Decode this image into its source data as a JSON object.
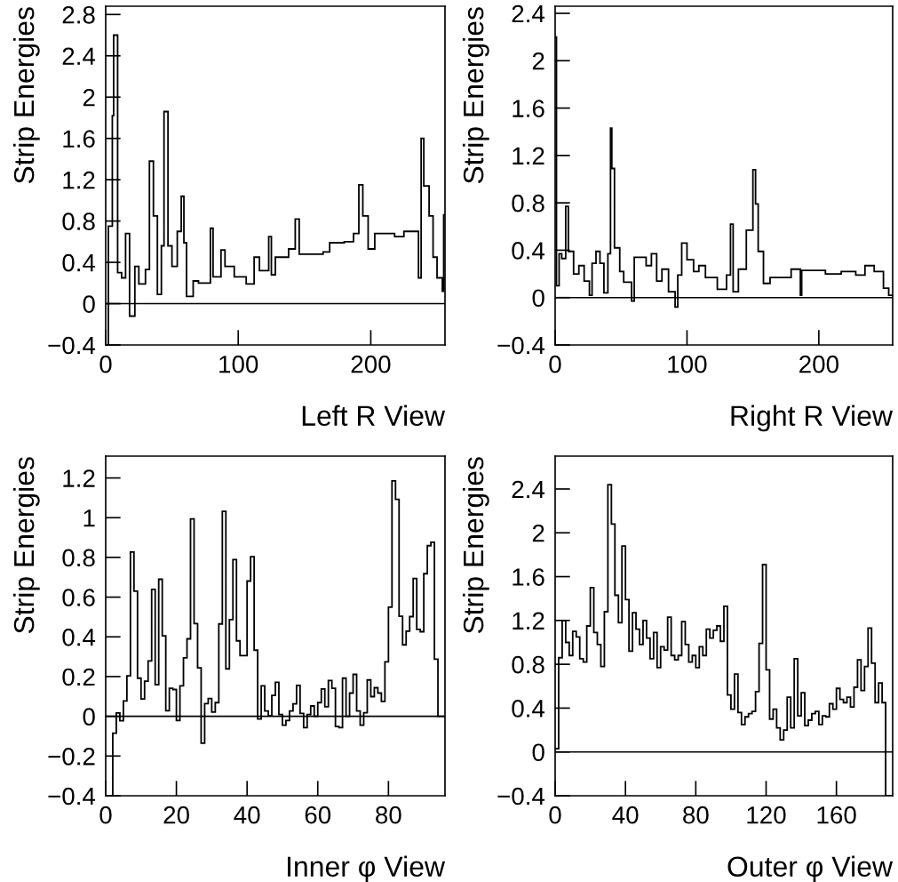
{
  "chart_data": [
    {
      "type": "histogram",
      "xlabel": "Left R View",
      "ylabel": "Strip Energies",
      "color": "#000000",
      "bins": [
        0,
        2,
        5,
        6,
        9,
        12,
        15,
        18,
        22,
        25,
        30,
        33,
        36,
        39,
        42,
        44,
        47,
        50,
        54,
        57,
        59,
        61,
        66,
        70,
        79,
        81,
        87,
        90,
        97,
        106,
        112,
        116,
        123,
        125,
        128,
        138,
        143,
        146,
        155,
        164,
        169,
        180,
        187,
        191,
        194,
        198,
        203,
        209,
        218,
        225,
        236,
        238,
        240,
        244,
        247,
        250,
        254,
        255,
        256
      ],
      "values": [
        -0.4,
        0.75,
        1.82,
        2.6,
        0.3,
        0.25,
        0.68,
        -0.12,
        0.36,
        0.19,
        0.33,
        1.38,
        0.85,
        0.09,
        0.56,
        1.86,
        0.56,
        0.36,
        0.7,
        1.04,
        0.59,
        0.07,
        0.22,
        0.2,
        0.73,
        0.26,
        0.52,
        0.36,
        0.26,
        0.19,
        0.45,
        0.32,
        0.65,
        0.28,
        0.45,
        0.53,
        0.82,
        0.48,
        0.48,
        0.5,
        0.59,
        0.6,
        0.68,
        1.15,
        0.85,
        0.53,
        0.68,
        0.68,
        0.65,
        0.7,
        0.25,
        1.6,
        1.14,
        0.85,
        0.45,
        0.25,
        0.12,
        0.86
      ],
      "xlim": [
        0,
        256
      ],
      "xticks": [
        0,
        100,
        200
      ],
      "ylim": [
        -0.4,
        2.88
      ],
      "yticks": [
        -0.4,
        0,
        0.4,
        0.8,
        1.2,
        1.6,
        2,
        2.4,
        2.8
      ],
      "ref_lines": [
        {
          "axis": "y",
          "value": 0
        }
      ]
    },
    {
      "type": "histogram",
      "xlabel": "Right R View",
      "ylabel": "Strip Energies",
      "color": "#000000",
      "bins": [
        0,
        1,
        3,
        5,
        8,
        10,
        14,
        18,
        22,
        26,
        28,
        31,
        34,
        37,
        40,
        42,
        43,
        45,
        49,
        52,
        58,
        60,
        69,
        73,
        77,
        81,
        86,
        91,
        93,
        96,
        100,
        105,
        109,
        114,
        123,
        130,
        133,
        135,
        139,
        145,
        150,
        152,
        154,
        158,
        163,
        179,
        186,
        187,
        205,
        217,
        228,
        235,
        242,
        249,
        253,
        256
      ],
      "values": [
        2.2,
        0.1,
        0.37,
        0.33,
        0.77,
        0.39,
        0.2,
        0.27,
        0.14,
        0.02,
        0.29,
        0.39,
        0.29,
        0.04,
        0.37,
        1.43,
        1.09,
        0.42,
        0.22,
        0.13,
        -0.03,
        0.34,
        0.27,
        0.37,
        0.14,
        0.24,
        0.05,
        -0.08,
        0.19,
        0.46,
        0.32,
        0.22,
        0.27,
        0.17,
        0.07,
        0.19,
        0.62,
        0.05,
        0.24,
        0.57,
        1.08,
        0.79,
        0.39,
        0.12,
        0.17,
        0.24,
        0.02,
        0.23,
        0.2,
        0.22,
        0.19,
        0.27,
        0.22,
        0.08,
        0.02
      ],
      "xlim": [
        0,
        256
      ],
      "xticks": [
        0,
        100,
        200
      ],
      "ylim": [
        -0.4,
        2.46
      ],
      "yticks": [
        -0.4,
        0,
        0.4,
        0.8,
        1.2,
        1.6,
        2,
        2.4
      ],
      "ref_lines": [
        {
          "axis": "y",
          "value": 0
        }
      ]
    },
    {
      "type": "histogram",
      "xlabel": "Inner φ View",
      "ylabel": "Strip Energies",
      "color": "#000000",
      "bins": [
        0,
        1,
        2,
        3,
        4,
        5,
        6,
        7,
        8,
        9,
        10,
        11,
        12,
        13,
        14,
        15,
        16,
        17,
        18,
        19,
        20,
        21,
        22,
        23,
        24,
        25,
        26,
        27,
        28,
        29,
        30,
        31,
        32,
        33,
        34,
        35,
        36,
        37,
        38,
        39,
        40,
        41,
        42,
        43,
        44,
        45,
        46,
        47,
        48,
        49,
        50,
        51,
        52,
        53,
        54,
        55,
        56,
        57,
        58,
        59,
        60,
        61,
        62,
        63,
        64,
        65,
        66,
        67,
        68,
        69,
        70,
        71,
        72,
        73,
        74,
        75,
        76,
        77,
        78,
        79,
        80,
        81,
        82,
        83,
        84,
        85,
        86,
        87,
        88,
        89,
        90,
        91,
        92,
        93,
        94,
        95,
        96
      ],
      "values": [
        -0.4,
        -0.4,
        -0.085,
        0.017,
        -0.022,
        0.077,
        0.204,
        0.827,
        0.63,
        0.192,
        0.087,
        0.177,
        0.279,
        0.639,
        0.159,
        0.69,
        0.405,
        0.028,
        0.141,
        0.135,
        -0.021,
        0.153,
        0.294,
        0.39,
        0.994,
        0.467,
        0.244,
        -0.135,
        0.064,
        0.09,
        0.021,
        0.069,
        0.465,
        1.032,
        0.239,
        0.487,
        0.789,
        0.38,
        0.306,
        0.306,
        0.681,
        0.804,
        0.333,
        -0.013,
        0.153,
        0.027,
        0.003,
        0.105,
        0.171,
        0.009,
        -0.045,
        -0.021,
        0.027,
        0.063,
        0.156,
        0.015,
        -0.057,
        0.009,
        0.052,
        0.0,
        0.069,
        0.138,
        0.048,
        0.18,
        0.141,
        -0.051,
        -0.057,
        0.192,
        0.0,
        0.117,
        0.211,
        0.027,
        -0.045,
        0.018,
        0.183,
        0.099,
        0.144,
        0.117,
        0.075,
        0.274,
        0.55,
        1.185,
        1.092,
        0.504,
        0.36,
        0.429,
        0.502,
        0.694,
        0.438,
        0.426,
        0.718,
        0.859,
        0.876,
        0.288,
        0.0,
        0.0
      ],
      "xlim": [
        0,
        96
      ],
      "xticks": [
        0,
        20,
        40,
        60,
        80
      ],
      "ylim": [
        -0.4,
        1.31
      ],
      "yticks": [
        -0.4,
        -0.2,
        0,
        0.2,
        0.4,
        0.6,
        0.8,
        1,
        1.2
      ],
      "ref_lines": [
        {
          "axis": "y",
          "value": 0
        }
      ]
    },
    {
      "type": "histogram",
      "xlabel": "Outer φ View",
      "ylabel": "Strip Energies",
      "color": "#000000",
      "bins": [
        0,
        2,
        4,
        6,
        8,
        10,
        12,
        14,
        16,
        18,
        20,
        22,
        24,
        26,
        28,
        30,
        32,
        34,
        36,
        38,
        40,
        42,
        44,
        46,
        48,
        50,
        52,
        54,
        56,
        58,
        60,
        62,
        64,
        66,
        68,
        70,
        72,
        74,
        76,
        78,
        80,
        82,
        84,
        86,
        88,
        90,
        92,
        94,
        96,
        98,
        100,
        102,
        104,
        106,
        108,
        110,
        112,
        114,
        116,
        118,
        120,
        122,
        124,
        126,
        128,
        130,
        132,
        134,
        136,
        138,
        140,
        142,
        144,
        146,
        148,
        150,
        152,
        154,
        156,
        158,
        160,
        162,
        164,
        166,
        168,
        170,
        172,
        174,
        176,
        178,
        180,
        182,
        184,
        186,
        188,
        190,
        192
      ],
      "values": [
        0.03,
        0.86,
        1.2,
        1.0,
        0.88,
        1.1,
        1.05,
        0.85,
        0.82,
        1.15,
        1.5,
        1.09,
        0.98,
        0.78,
        1.28,
        2.44,
        2.08,
        1.43,
        1.18,
        1.88,
        1.39,
        0.92,
        1.27,
        1.12,
        0.98,
        1.2,
        1.04,
        0.85,
        1.09,
        0.77,
        0.96,
        0.93,
        1.23,
        0.88,
        0.84,
        0.88,
        1.19,
        0.98,
        0.82,
        0.88,
        0.77,
        0.96,
        0.88,
        1.12,
        1.04,
        1.11,
        1.15,
        1.01,
        1.33,
        0.52,
        0.39,
        0.71,
        0.36,
        0.25,
        0.32,
        0.35,
        0.37,
        0.55,
        0.99,
        1.71,
        0.75,
        0.3,
        0.39,
        0.22,
        0.11,
        0.2,
        0.5,
        0.22,
        0.85,
        0.33,
        0.54,
        0.24,
        0.29,
        0.35,
        0.37,
        0.25,
        0.33,
        0.32,
        0.44,
        0.39,
        0.58,
        0.48,
        0.45,
        0.5,
        0.41,
        0.59,
        0.84,
        0.56,
        0.78,
        1.13,
        0.81,
        0.45,
        0.63,
        0.45,
        -0.4,
        -0.4
      ],
      "xlim": [
        0,
        192
      ],
      "xticks": [
        0,
        40,
        80,
        120,
        160
      ],
      "ylim": [
        -0.4,
        2.7
      ],
      "yticks": [
        -0.4,
        0,
        0.4,
        0.8,
        1.2,
        1.6,
        2,
        2.4
      ],
      "ref_lines": [
        {
          "axis": "y",
          "value": 0
        }
      ]
    }
  ]
}
